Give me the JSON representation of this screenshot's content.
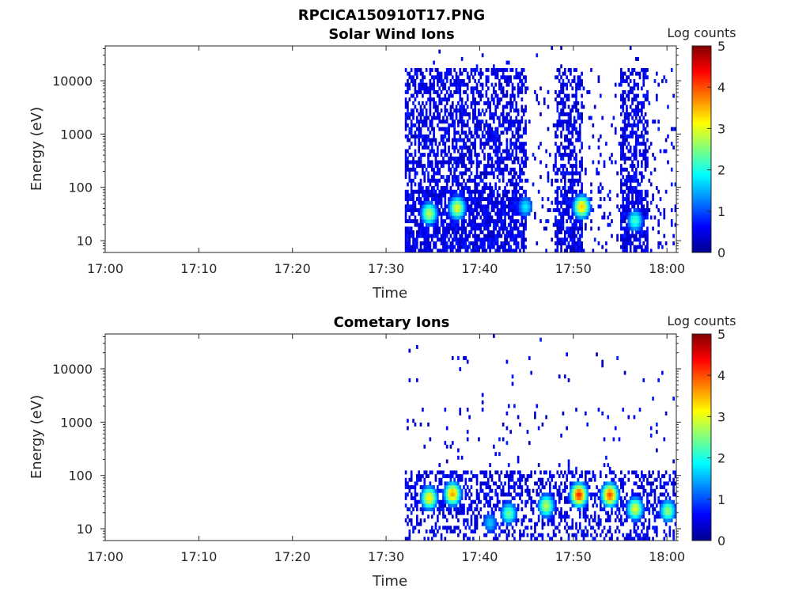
{
  "figure_title": "RPCICA150910T17.PNG",
  "chart_data": [
    {
      "type": "heatmap",
      "title": "Solar Wind Ions",
      "xlabel": "Time",
      "ylabel": "Energy (eV)",
      "x_ticks": [
        "17:00",
        "17:10",
        "17:20",
        "17:30",
        "17:40",
        "17:50",
        "18:00"
      ],
      "xlim": [
        "17:00",
        "18:01"
      ],
      "y_scale": "log",
      "y_ticks": [
        10,
        100,
        1000,
        10000
      ],
      "y_tick_labels": [
        "10",
        "100",
        "1000",
        "10000"
      ],
      "ylim": [
        6,
        45000
      ],
      "colorbar": {
        "title": "Log counts",
        "range": [
          0,
          5
        ],
        "ticks": [
          "0",
          "1",
          "2",
          "3",
          "4",
          "5"
        ],
        "colormap": "jet"
      },
      "data_window": [
        "17:32",
        "18:01"
      ],
      "activity_bands": [
        {
          "start": "17:32",
          "end": "17:45",
          "density": 0.55,
          "upper_energy": 15000
        },
        {
          "start": "17:45",
          "end": "17:48",
          "density": 0.07,
          "upper_energy": 15000
        },
        {
          "start": "17:48",
          "end": "17:51",
          "density": 0.55,
          "upper_energy": 15000
        },
        {
          "start": "17:51",
          "end": "17:55",
          "density": 0.07,
          "upper_energy": 15000
        },
        {
          "start": "17:55",
          "end": "17:58",
          "density": 0.55,
          "upper_energy": 15000
        },
        {
          "start": "17:58",
          "end": "18:01",
          "density": 0.1,
          "upper_energy": 15000
        }
      ],
      "peaks": [
        {
          "time": "17:34.5",
          "energy": 30,
          "log_counts": 2.8
        },
        {
          "time": "17:37.5",
          "energy": 38,
          "log_counts": 3.0
        },
        {
          "time": "17:50.8",
          "energy": 40,
          "log_counts": 3.4
        },
        {
          "time": "17:56.5",
          "energy": 22,
          "log_counts": 2.2
        },
        {
          "time": "17:44.8",
          "energy": 40,
          "log_counts": 1.8
        }
      ]
    },
    {
      "type": "heatmap",
      "title": "Cometary Ions",
      "xlabel": "Time",
      "ylabel": "Energy (eV)",
      "x_ticks": [
        "17:00",
        "17:10",
        "17:20",
        "17:30",
        "17:40",
        "17:50",
        "18:00"
      ],
      "xlim": [
        "17:00",
        "18:01"
      ],
      "y_scale": "log",
      "y_ticks": [
        10,
        100,
        1000,
        10000
      ],
      "y_tick_labels": [
        "10",
        "100",
        "1000",
        "10000"
      ],
      "ylim": [
        6,
        45000
      ],
      "colorbar": {
        "title": "Log counts",
        "range": [
          0,
          5
        ],
        "ticks": [
          "0",
          "1",
          "2",
          "3",
          "4",
          "5"
        ],
        "colormap": "jet"
      },
      "data_window": [
        "17:32",
        "18:01"
      ],
      "peaks": [
        {
          "time": "17:34.5",
          "energy": 35,
          "log_counts": 3.2
        },
        {
          "time": "17:37.0",
          "energy": 42,
          "log_counts": 3.6
        },
        {
          "time": "17:43.0",
          "energy": 18,
          "log_counts": 2.4
        },
        {
          "time": "17:47.0",
          "energy": 25,
          "log_counts": 2.8
        },
        {
          "time": "17:50.5",
          "energy": 40,
          "log_counts": 4.2
        },
        {
          "time": "17:53.8",
          "energy": 40,
          "log_counts": 4.0
        },
        {
          "time": "17:56.5",
          "energy": 22,
          "log_counts": 3.0
        },
        {
          "time": "18:00.0",
          "energy": 20,
          "log_counts": 2.6
        },
        {
          "time": "17:41.0",
          "energy": 12,
          "log_counts": 1.6
        }
      ]
    }
  ]
}
